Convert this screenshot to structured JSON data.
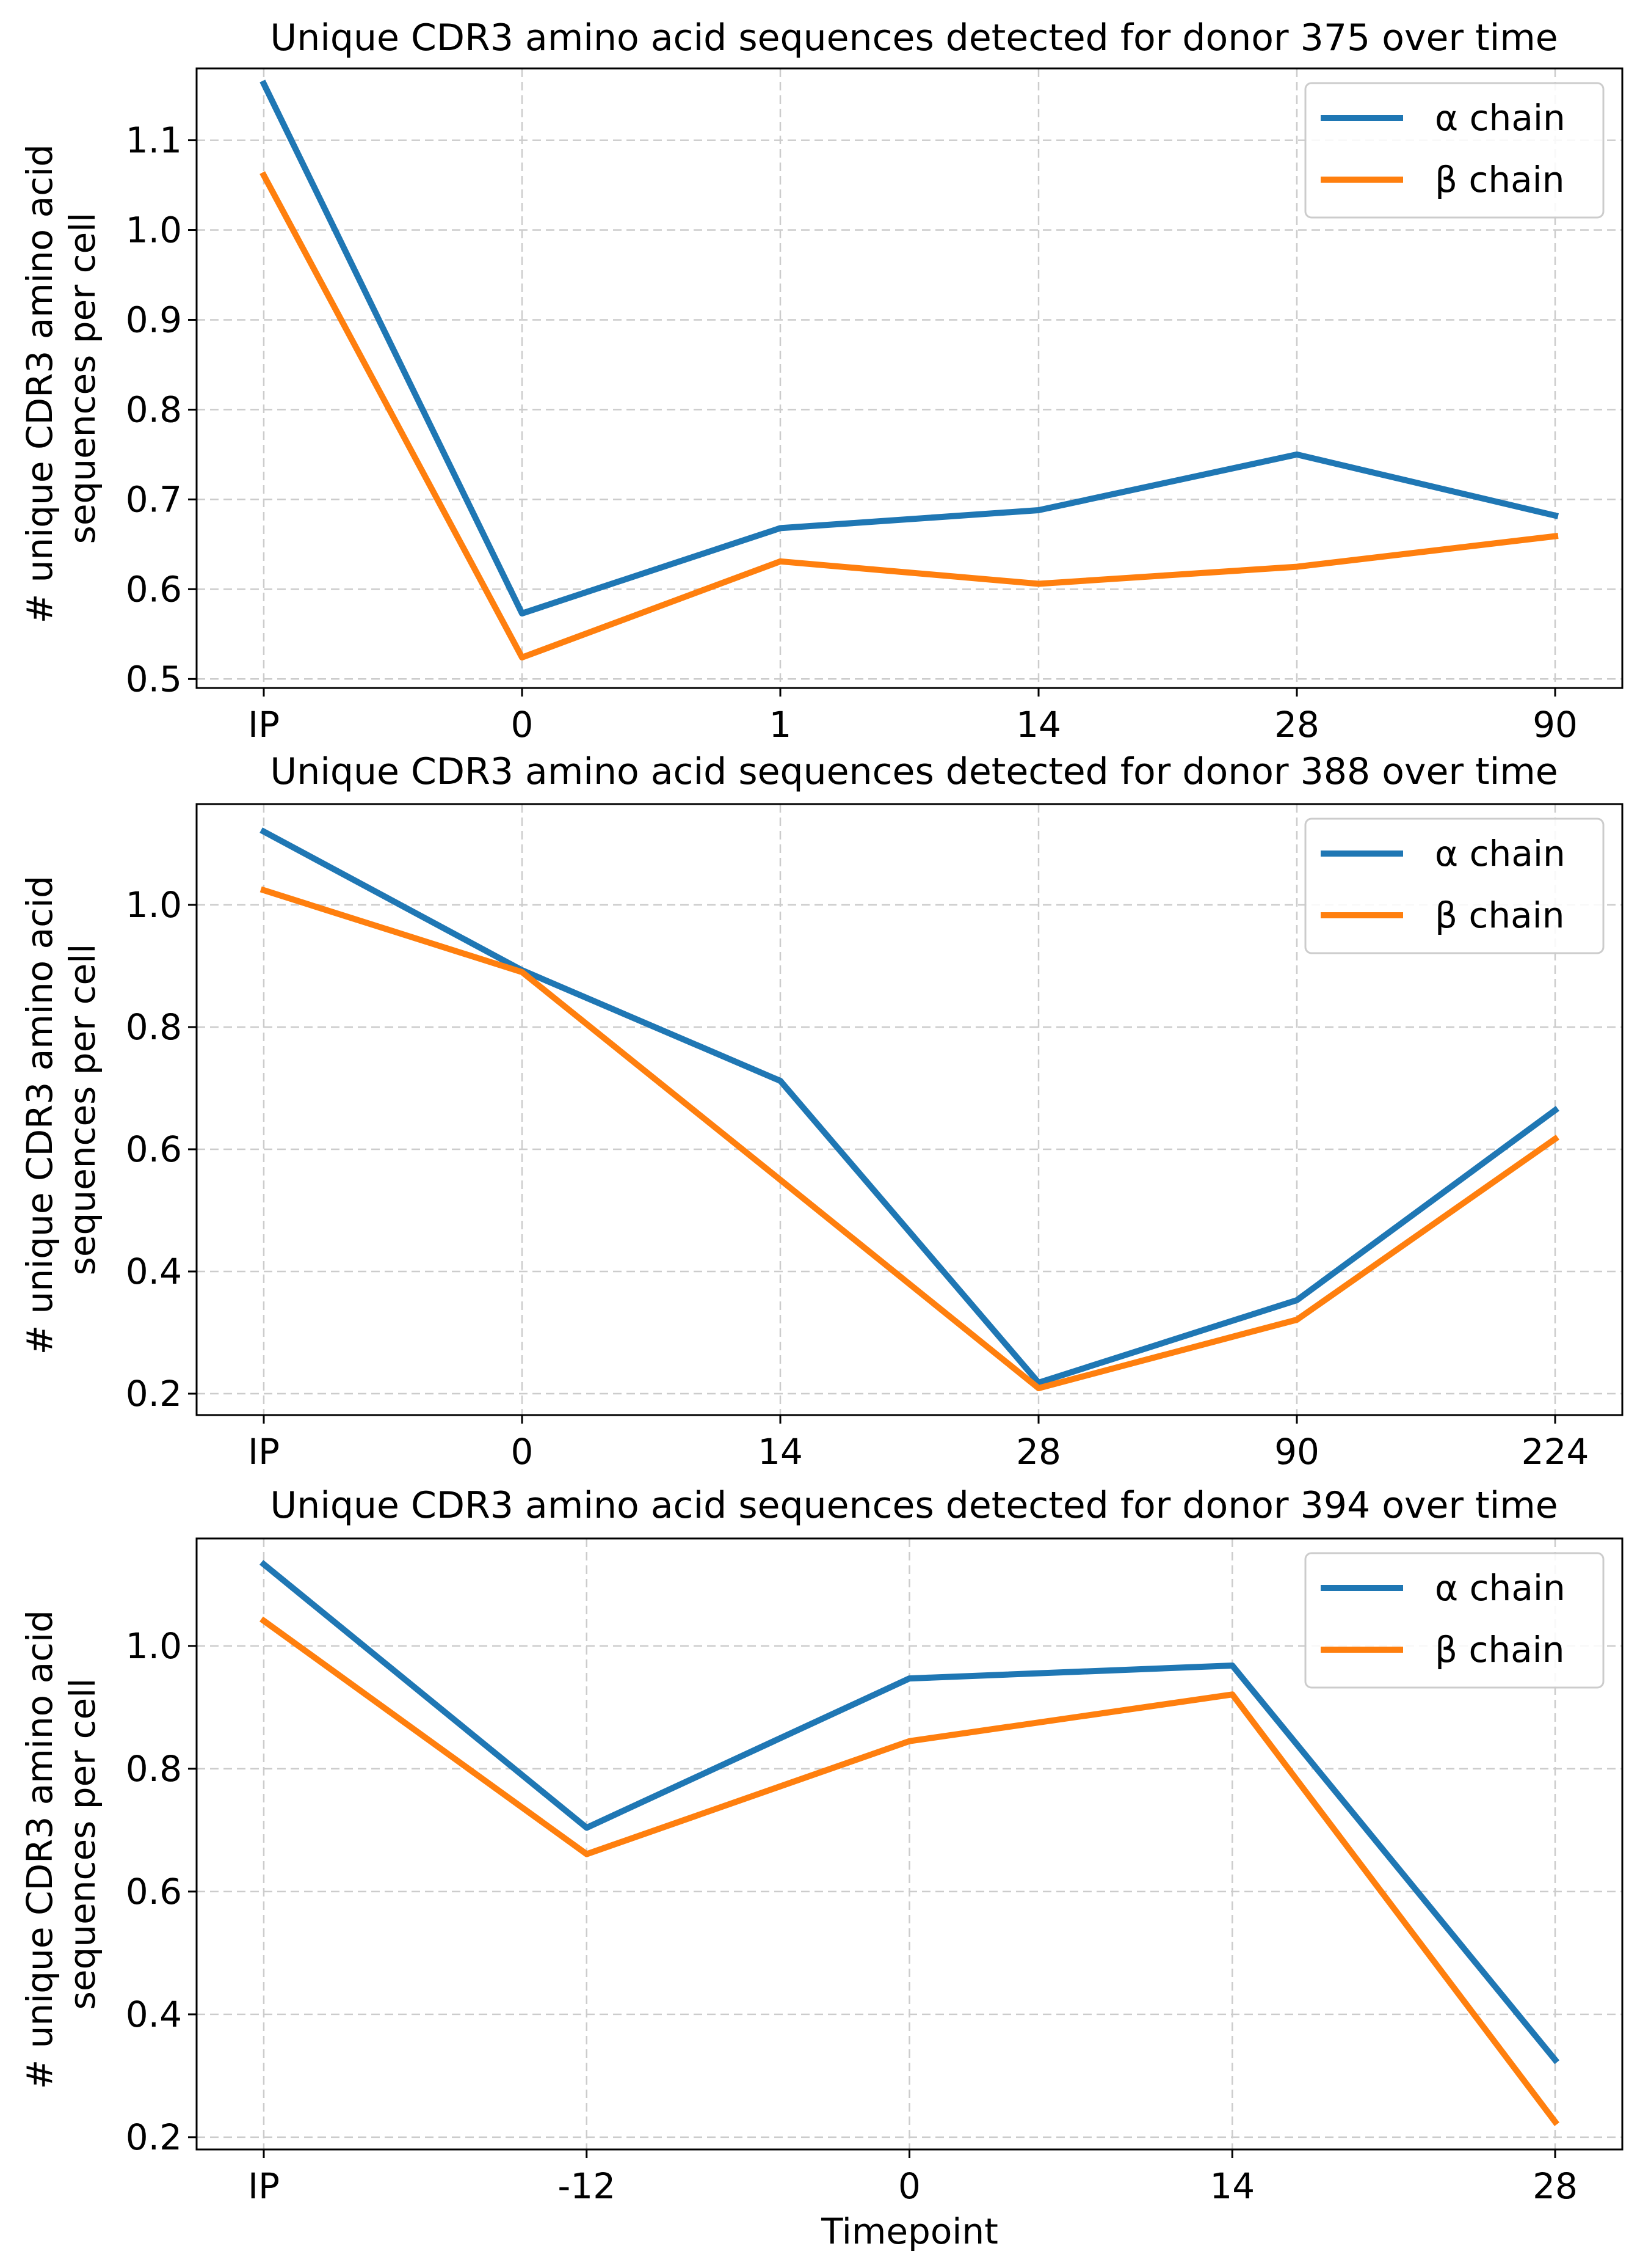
{
  "figure": {
    "xlabel": "Timepoint"
  },
  "colors": {
    "alpha": "#1f77b4",
    "beta": "#ff7f0e"
  },
  "chart_data": [
    {
      "type": "line",
      "title": "Unique CDR3 amino acid sequences detected for donor 375 over time",
      "xlabel": "",
      "ylabel_lines": [
        "# unique CDR3 amino acid",
        "sequences per cell"
      ],
      "categories": [
        "IP",
        "0",
        "1",
        "14",
        "28",
        "90"
      ],
      "yticks": [
        "0.5",
        "0.6",
        "0.7",
        "0.8",
        "0.9",
        "1.0",
        "1.1"
      ],
      "ylim": [
        0.49,
        1.18
      ],
      "grid": true,
      "legend": "top-right",
      "series": [
        {
          "name": "α chain",
          "color": "#1f77b4",
          "values": [
            1.163,
            0.573,
            0.668,
            0.688,
            0.75,
            0.682
          ]
        },
        {
          "name": "β chain",
          "color": "#ff7f0e",
          "values": [
            1.061,
            0.524,
            0.631,
            0.606,
            0.625,
            0.659
          ]
        }
      ]
    },
    {
      "type": "line",
      "title": "Unique CDR3 amino acid sequences detected for donor 388 over time",
      "xlabel": "",
      "ylabel_lines": [
        "# unique CDR3 amino acid",
        "sequences per cell"
      ],
      "categories": [
        "IP",
        "0",
        "14",
        "28",
        "90",
        "224"
      ],
      "yticks": [
        "0.2",
        "0.4",
        "0.6",
        "0.8",
        "1.0"
      ],
      "ylim": [
        0.165,
        1.165
      ],
      "grid": true,
      "legend": "top-right",
      "series": [
        {
          "name": "α chain",
          "color": "#1f77b4",
          "values": [
            1.12,
            0.893,
            0.712,
            0.218,
            0.353,
            0.664
          ]
        },
        {
          "name": "β chain",
          "color": "#ff7f0e",
          "values": [
            1.024,
            0.89,
            0.55,
            0.209,
            0.321,
            0.617
          ]
        }
      ]
    },
    {
      "type": "line",
      "title": "Unique CDR3 amino acid sequences detected for donor 394 over time",
      "xlabel": "Timepoint",
      "ylabel_lines": [
        "# unique CDR3 amino acid",
        "sequences per cell"
      ],
      "categories": [
        "IP",
        "-12",
        "0",
        "14",
        "28"
      ],
      "yticks": [
        "0.2",
        "0.4",
        "0.6",
        "0.8",
        "1.0"
      ],
      "ylim": [
        0.18,
        1.175
      ],
      "grid": true,
      "legend": "top-right",
      "series": [
        {
          "name": "α chain",
          "color": "#1f77b4",
          "values": [
            1.133,
            0.704,
            0.947,
            0.968,
            0.326
          ]
        },
        {
          "name": "β chain",
          "color": "#ff7f0e",
          "values": [
            1.041,
            0.661,
            0.845,
            0.921,
            0.225
          ]
        }
      ]
    }
  ]
}
